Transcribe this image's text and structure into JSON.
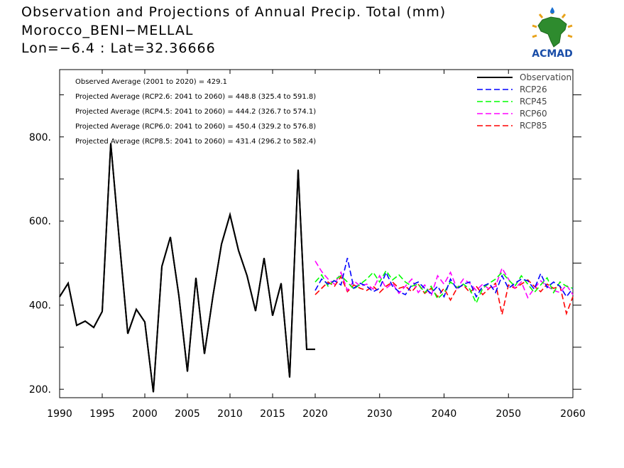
{
  "header": {
    "title": "Observation and Projections of Annual Precip. Total (mm)",
    "location": "Morocco_BENI−MELLAL",
    "coords": "Lon=−6.4 : Lat=32.36666"
  },
  "logo": {
    "text": "ACMAD",
    "icon": "africa-map-sun-logo"
  },
  "chart_data": {
    "type": "line",
    "title": "Observation and Projections of Annual Precip. Total (mm)",
    "xlabel": "",
    "ylabel": "",
    "xlim": [
      1990,
      2060
    ],
    "ylim": [
      180,
      960
    ],
    "grid": false,
    "legend_position": "top-right",
    "x_ticks": [
      1990,
      1995,
      2000,
      2005,
      2010,
      2015,
      2020,
      2030,
      2040,
      2050,
      2060
    ],
    "x_tick_labels": [
      "1990",
      "1995",
      "2000",
      "2005",
      "2010",
      "2015",
      "2020",
      "2030",
      "2040",
      "2050",
      "2060"
    ],
    "y_ticks": [
      200,
      400,
      600,
      800
    ],
    "y_tick_labels": [
      "200.",
      "400.",
      "600.",
      "800."
    ],
    "annotations": [
      "Observed Average (2001 to 2020) = 429.1",
      "Projected Average (RCP2.6: 2041 to 2060) = 448.8 (325.4 to 591.8)",
      "Projected Average (RCP4.5: 2041 to 2060) = 444.2 (326.7 to 574.1)",
      "Projected Average (RCP6.0: 2041 to 2060) = 450.4 (329.2 to 576.8)",
      "Projected Average (RCP8.5: 2041 to 2060) = 431.4 (296.2 to 582.4)"
    ],
    "series": [
      {
        "name": "Observation",
        "color": "#000000",
        "dash": "solid",
        "x": [
          1990,
          1991,
          1992,
          1993,
          1994,
          1995,
          1996,
          1997,
          1998,
          1999,
          2000,
          2001,
          2002,
          2003,
          2004,
          2005,
          2006,
          2007,
          2008,
          2009,
          2010,
          2011,
          2012,
          2013,
          2014,
          2015,
          2016,
          2017,
          2018,
          2019,
          2020
        ],
        "values": [
          420,
          452,
          352,
          362,
          347,
          385,
          785,
          555,
          332,
          390,
          360,
          193,
          492,
          562,
          422,
          242,
          465,
          284,
          422,
          545,
          615,
          530,
          470,
          386,
          512,
          375,
          452,
          228,
          722,
          295,
          295
        ]
      },
      {
        "name": "RCP26",
        "color": "#0000ff",
        "dash": "dashed",
        "x": [
          2020,
          2021,
          2022,
          2023,
          2024,
          2025,
          2026,
          2027,
          2028,
          2029,
          2030,
          2031,
          2032,
          2033,
          2034,
          2035,
          2036,
          2037,
          2038,
          2039,
          2040,
          2041,
          2042,
          2043,
          2044,
          2045,
          2046,
          2047,
          2048,
          2049,
          2050,
          2051,
          2052,
          2053,
          2054,
          2055,
          2056,
          2057,
          2058,
          2059,
          2060
        ],
        "values": [
          435,
          462,
          450,
          458,
          448,
          512,
          440,
          452,
          445,
          432,
          440,
          478,
          445,
          432,
          425,
          448,
          455,
          440,
          428,
          445,
          420,
          462,
          438,
          450,
          455,
          420,
          445,
          452,
          430,
          470,
          440,
          452,
          462,
          458,
          438,
          475,
          442,
          455,
          445,
          420,
          440
        ]
      },
      {
        "name": "RCP45",
        "color": "#00ff00",
        "dash": "dashed",
        "x": [
          2020,
          2021,
          2022,
          2023,
          2024,
          2025,
          2026,
          2027,
          2028,
          2029,
          2030,
          2031,
          2032,
          2033,
          2034,
          2035,
          2036,
          2037,
          2038,
          2039,
          2040,
          2041,
          2042,
          2043,
          2044,
          2045,
          2046,
          2047,
          2048,
          2049,
          2050,
          2051,
          2052,
          2053,
          2054,
          2055,
          2056,
          2057,
          2058,
          2059,
          2060
        ],
        "values": [
          455,
          472,
          445,
          460,
          470,
          455,
          438,
          450,
          462,
          478,
          455,
          482,
          460,
          472,
          455,
          445,
          450,
          430,
          445,
          415,
          430,
          455,
          442,
          450,
          438,
          405,
          440,
          452,
          462,
          478,
          460,
          445,
          470,
          450,
          430,
          448,
          465,
          430,
          455,
          445,
          440
        ]
      },
      {
        "name": "RCP60",
        "color": "#ff00ff",
        "dash": "dashed",
        "x": [
          2020,
          2021,
          2022,
          2023,
          2024,
          2025,
          2026,
          2027,
          2028,
          2029,
          2030,
          2031,
          2032,
          2033,
          2034,
          2035,
          2036,
          2037,
          2038,
          2039,
          2040,
          2041,
          2042,
          2043,
          2044,
          2045,
          2046,
          2047,
          2048,
          2049,
          2050,
          2051,
          2052,
          2053,
          2054,
          2055,
          2056,
          2057,
          2058,
          2059,
          2060
        ],
        "values": [
          505,
          480,
          462,
          450,
          478,
          435,
          458,
          445,
          450,
          438,
          470,
          440,
          452,
          428,
          445,
          462,
          430,
          448,
          422,
          470,
          450,
          478,
          440,
          462,
          452,
          435,
          450,
          438,
          445,
          488,
          462,
          440,
          455,
          418,
          440,
          458,
          445,
          435,
          430,
          448,
          425
        ]
      },
      {
        "name": "RCP85",
        "color": "#ff0000",
        "dash": "dashed",
        "x": [
          2020,
          2021,
          2022,
          2023,
          2024,
          2025,
          2026,
          2027,
          2028,
          2029,
          2030,
          2031,
          2032,
          2033,
          2034,
          2035,
          2036,
          2037,
          2038,
          2039,
          2040,
          2041,
          2042,
          2043,
          2044,
          2045,
          2046,
          2047,
          2048,
          2049,
          2050,
          2051,
          2052,
          2053,
          2054,
          2055,
          2056,
          2057,
          2058,
          2059,
          2060
        ],
        "values": [
          425,
          440,
          455,
          445,
          468,
          432,
          448,
          440,
          435,
          445,
          430,
          445,
          455,
          440,
          445,
          432,
          450,
          428,
          440,
          420,
          440,
          412,
          440,
          448,
          430,
          445,
          425,
          440,
          452,
          378,
          448,
          440,
          450,
          460,
          445,
          432,
          450,
          440,
          445,
          380,
          420
        ]
      }
    ]
  }
}
